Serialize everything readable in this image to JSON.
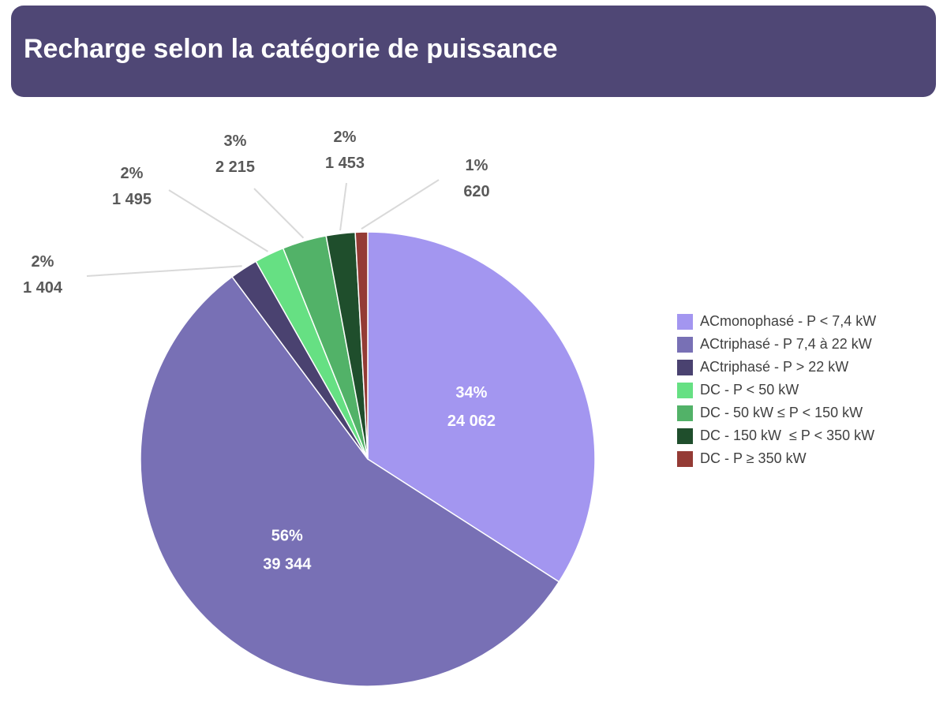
{
  "header": {
    "title": "Recharge selon la catégorie de puissance"
  },
  "colors": {
    "banner": "#4f4775",
    "leader": "#d9d9d9",
    "outside_label": "#595959",
    "inside_label": "#ffffff"
  },
  "chart_data": {
    "type": "pie",
    "title": "Recharge selon la catégorie de puissance",
    "start_angle_deg": 0,
    "direction": "clockwise",
    "legend_position": "right",
    "slices": [
      {
        "name": "ACmonophasé - P < 7,4 kW",
        "value": 24062,
        "percent_label": "34%",
        "value_label": "24 062",
        "color": "#a396f0",
        "label_placement": "inside"
      },
      {
        "name": "ACtriphasé - P 7,4 à 22 kW",
        "value": 39344,
        "percent_label": "56%",
        "value_label": "39 344",
        "color": "#7870b5",
        "label_placement": "inside"
      },
      {
        "name": "ACtriphasé - P > 22 kW",
        "value": 1404,
        "percent_label": "2%",
        "value_label": "1 404",
        "color": "#4a4270",
        "label_placement": "outside"
      },
      {
        "name": "DC - P < 50 kW",
        "value": 1495,
        "percent_label": "2%",
        "value_label": "1 495",
        "color": "#66e083",
        "label_placement": "outside"
      },
      {
        "name": "DC - 50 kW ≤ P < 150 kW",
        "value": 2215,
        "percent_label": "3%",
        "value_label": "2 215",
        "color": "#52b268",
        "label_placement": "outside"
      },
      {
        "name": "DC - 150 kW  ≤ P < 350 kW",
        "value": 1453,
        "percent_label": "2%",
        "value_label": "1 453",
        "color": "#1f4e2c",
        "label_placement": "outside"
      },
      {
        "name": "DC - P ≥ 350 kW",
        "value": 620,
        "percent_label": "1%",
        "value_label": "620",
        "color": "#943b35",
        "label_placement": "outside"
      }
    ]
  }
}
